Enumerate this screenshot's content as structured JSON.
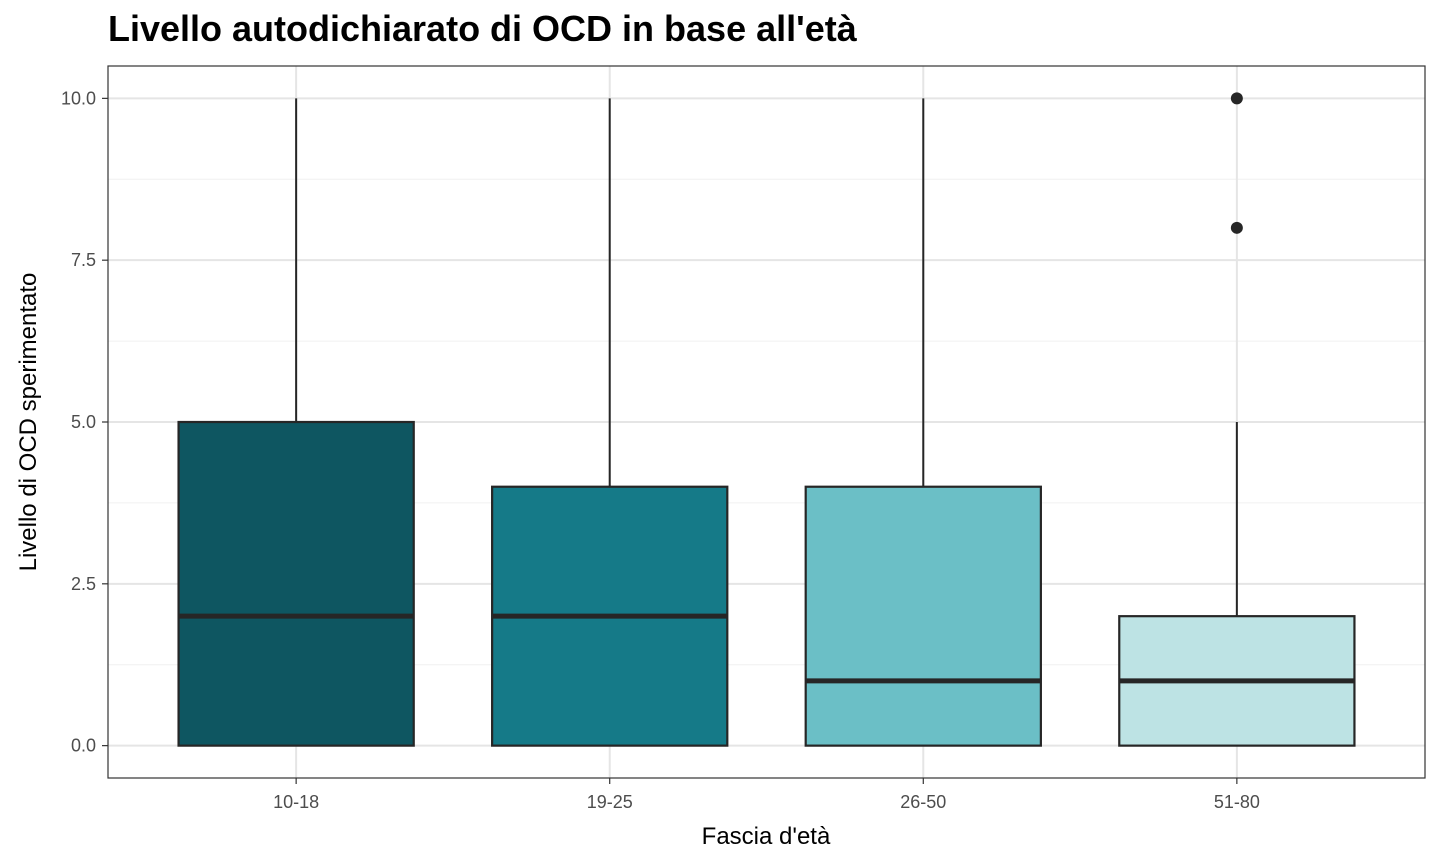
{
  "chart_data": {
    "type": "boxplot",
    "title": "Livello autodichiarato di OCD in base all'età",
    "xlabel": "Fascia d'età",
    "ylabel": "Livello di OCD sperimentato",
    "ylim": [
      -0.5,
      10.5
    ],
    "yticks": [
      0,
      2.5,
      5,
      7.5,
      10
    ],
    "ytick_labels": [
      "0.0",
      "2.5",
      "5.0",
      "7.5",
      "10.0"
    ],
    "grid": true,
    "categories": [
      "10-18",
      "19-25",
      "26-50",
      "51-80"
    ],
    "boxes": [
      {
        "category": "10-18",
        "whisker_low": 0,
        "q1": 0,
        "median": 2,
        "q3": 5,
        "whisker_high": 10,
        "outliers": [],
        "color": "#0e5661"
      },
      {
        "category": "19-25",
        "whisker_low": 0,
        "q1": 0,
        "median": 2,
        "q3": 4,
        "whisker_high": 10,
        "outliers": [],
        "color": "#157a88"
      },
      {
        "category": "26-50",
        "whisker_low": 0,
        "q1": 0,
        "median": 1,
        "q3": 4,
        "whisker_high": 10,
        "outliers": [],
        "color": "#6bbfc6"
      },
      {
        "category": "51-80",
        "whisker_low": 0,
        "q1": 0,
        "median": 1,
        "q3": 2,
        "whisker_high": 5,
        "outliers": [
          8,
          10
        ],
        "color": "#bde3e4"
      }
    ]
  }
}
